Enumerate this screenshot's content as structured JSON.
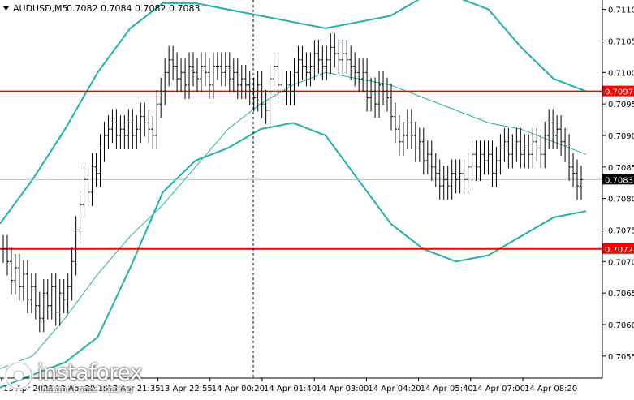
{
  "chart_data": {
    "type": "candlestick",
    "title": "AUDUSD,M5",
    "ohlc_label": "0.7082 0.7084 0.7082 0.7083",
    "price_axis": {
      "min": 0.705,
      "max": 0.711,
      "ticks": [
        "0.7110",
        "0.7105",
        "0.7100",
        "0.7095",
        "0.7090",
        "0.7085",
        "0.7080",
        "0.7075",
        "0.7070",
        "0.7065",
        "0.7060",
        "0.7055"
      ]
    },
    "time_axis_labels": [
      "13 Apr 2021",
      "13 Apr 20:15",
      "13 Apr 21:35",
      "13 Apr 22:55",
      "14 Apr 00:20",
      "14 Apr 01:40",
      "14 Apr 03:00",
      "14 Apr 04:20",
      "14 Apr 05:40",
      "14 Apr 07:00",
      "14 Apr 08:20"
    ],
    "horizontal_levels": [
      {
        "price": 0.7097,
        "label": "0.7097",
        "color": "#ff0000"
      },
      {
        "price": 0.7072,
        "label": "0.7072",
        "color": "#ff0000"
      }
    ],
    "current_price": {
      "price": 0.7083,
      "label": "0.7083"
    },
    "candles_close": [
      0.7072,
      0.707,
      0.7067,
      0.7069,
      0.7066,
      0.7068,
      0.7064,
      0.7066,
      0.7063,
      0.7061,
      0.7065,
      0.7063,
      0.7066,
      0.7062,
      0.7065,
      0.7064,
      0.7066,
      0.707,
      0.7075,
      0.7079,
      0.7083,
      0.7081,
      0.7085,
      0.7084,
      0.7088,
      0.709,
      0.7091,
      0.7092,
      0.709,
      0.7091,
      0.709,
      0.7092,
      0.709,
      0.7091,
      0.7093,
      0.7092,
      0.7091,
      0.709,
      0.7095,
      0.7097,
      0.71,
      0.7102,
      0.7101,
      0.7099,
      0.71,
      0.7098,
      0.7101,
      0.71,
      0.7099,
      0.7101,
      0.71,
      0.7098,
      0.7101,
      0.7101,
      0.71,
      0.7101,
      0.7099,
      0.71,
      0.7098,
      0.7099,
      0.7098,
      0.7097,
      0.7096,
      0.7098,
      0.7095,
      0.7094,
      0.7099,
      0.7101,
      0.7098,
      0.7097,
      0.7098,
      0.7097,
      0.71,
      0.7102,
      0.7101,
      0.71,
      0.7101,
      0.7103,
      0.7102,
      0.7101,
      0.7102,
      0.7104,
      0.7103,
      0.7102,
      0.7103,
      0.7102,
      0.7101,
      0.71,
      0.7099,
      0.71,
      0.7096,
      0.7097,
      0.7095,
      0.7098,
      0.7097,
      0.7096,
      0.7093,
      0.7091,
      0.7089,
      0.709,
      0.7092,
      0.709,
      0.7088,
      0.7089,
      0.7086,
      0.7087,
      0.7085,
      0.7084,
      0.7082,
      0.7083,
      0.7082,
      0.7084,
      0.7083,
      0.7084,
      0.7083,
      0.7085,
      0.7087,
      0.7085,
      0.7087,
      0.7086,
      0.7087,
      0.7084,
      0.7086,
      0.7088,
      0.7089,
      0.7087,
      0.7088,
      0.7089,
      0.7087,
      0.7088,
      0.7087,
      0.7089,
      0.7088,
      0.7087,
      0.709,
      0.7092,
      0.709,
      0.7091,
      0.7089,
      0.7088,
      0.7085,
      0.7084,
      0.7082,
      0.7083
    ],
    "bollinger_upper_visible": [
      0.7076,
      0.7083,
      0.7091,
      0.71,
      0.7107,
      0.7111,
      0.7111,
      0.711,
      0.7109,
      0.7108,
      0.7107,
      0.7108,
      0.7109,
      0.7112,
      0.7112,
      0.711,
      0.7104,
      0.7099,
      0.7097
    ],
    "bollinger_lower_visible": [
      0.705,
      0.7052,
      0.7054,
      0.7058,
      0.7069,
      0.7081,
      0.7086,
      0.7088,
      0.7091,
      0.7092,
      0.709,
      0.7083,
      0.7076,
      0.7072,
      0.707,
      0.7071,
      0.7074,
      0.7077,
      0.7078
    ],
    "moving_average_visible": [
      0.7053,
      0.7055,
      0.7061,
      0.7068,
      0.7074,
      0.7079,
      0.7085,
      0.7091,
      0.7095,
      0.7098,
      0.71,
      0.7099,
      0.7098,
      0.7096,
      0.7094,
      0.7092,
      0.7091,
      0.7089,
      0.7087
    ],
    "colors": {
      "background": "#ffffff",
      "candle": "#000000",
      "bands": "#20b2aa",
      "level": "#ff0000",
      "grid_text": "#000000"
    }
  },
  "watermark": {
    "name": "instaforex",
    "sub": "Instant Forex Trading"
  }
}
